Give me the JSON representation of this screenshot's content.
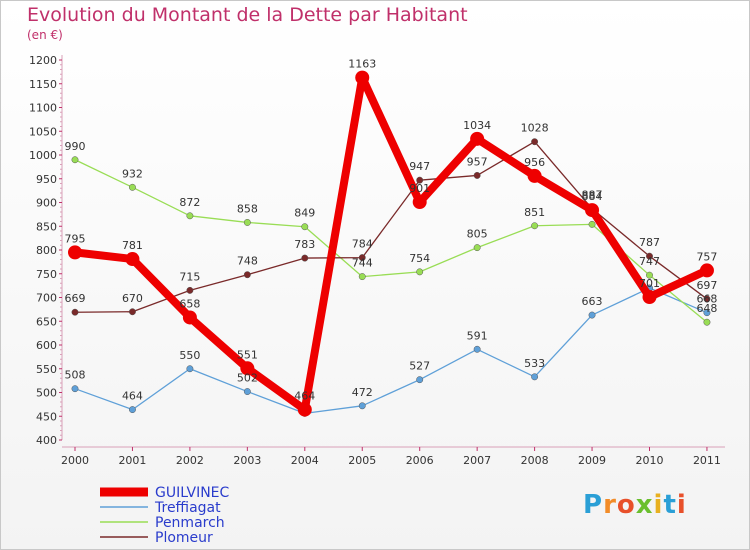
{
  "title": "Evolution du Montant de la Dette par Habitant",
  "unit": "(en €)",
  "logo": {
    "letters": [
      "P",
      "r",
      "o",
      "x",
      "i",
      "t",
      "i"
    ],
    "colors": [
      "#2a9fd6",
      "#f28c28",
      "#e8502a",
      "#6abf2e",
      "#e8b020",
      "#2a9fd6",
      "#e8502a"
    ]
  },
  "chart_data": {
    "type": "line",
    "title": "Evolution du Montant de la Dette par Habitant",
    "ylabel": "(en €)",
    "xlabel": "",
    "ylim": [
      400,
      1200
    ],
    "yticks": [
      400,
      450,
      500,
      550,
      600,
      650,
      700,
      750,
      800,
      850,
      900,
      950,
      1000,
      1050,
      1100,
      1150,
      1200
    ],
    "categories": [
      "2000",
      "2001",
      "2002",
      "2003",
      "2004",
      "2005",
      "2006",
      "2007",
      "2008",
      "2009",
      "2010",
      "2011"
    ],
    "grid": false,
    "legend": "bottom-left",
    "series": [
      {
        "name": "GUILVINEC",
        "values": [
          795,
          781,
          658,
          551,
          464,
          1163,
          901,
          1034,
          956,
          884,
          701,
          757
        ],
        "color": "#ee0000",
        "emphasis": true
      },
      {
        "name": "Treffiagat",
        "values": [
          508,
          464,
          550,
          502,
          456,
          472,
          527,
          591,
          533,
          663,
          720,
          668
        ],
        "color": "#5fa0d8",
        "labels": [
          "508",
          "464",
          "550",
          "502",
          "",
          "472",
          "527",
          "591",
          "533",
          "663",
          "",
          "668"
        ]
      },
      {
        "name": "Penmarch",
        "values": [
          990,
          932,
          872,
          858,
          849,
          744,
          754,
          805,
          851,
          854,
          747,
          648
        ],
        "color": "#99dd55",
        "labels": [
          "990",
          "932",
          "872",
          "858",
          "849",
          "744",
          "754",
          "805",
          "851",
          "",
          "747",
          "648"
        ]
      },
      {
        "name": "Plomeur",
        "values": [
          669,
          670,
          715,
          748,
          783,
          784,
          947,
          957,
          1028,
          887,
          787,
          697
        ],
        "color": "#7a2a2a",
        "labels": [
          "669",
          "670",
          "715",
          "748",
          "783",
          "784",
          "947",
          "957",
          "1028",
          "887",
          "787",
          "697"
        ]
      }
    ]
  }
}
